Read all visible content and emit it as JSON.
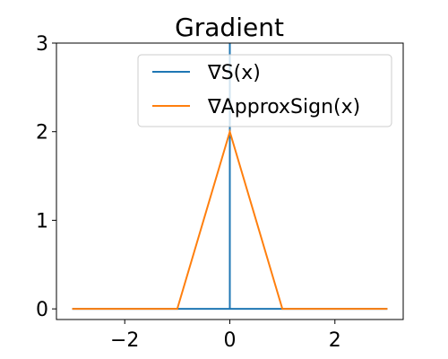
{
  "chart_data": {
    "type": "line",
    "title": "Gradient",
    "xlabel": "",
    "ylabel": "",
    "xlim": [
      -3.3,
      3.3
    ],
    "ylim": [
      -0.12,
      3.0
    ],
    "x_ticks": [
      -2,
      0,
      2
    ],
    "x_tick_labels": [
      "−2",
      "0",
      "2"
    ],
    "y_ticks": [
      0,
      1,
      2,
      3
    ],
    "y_tick_labels": [
      "0",
      "1",
      "2",
      "3"
    ],
    "grid": false,
    "legend_position": "top-right",
    "series": [
      {
        "name": "∇S(x)",
        "color": "#1f77b4",
        "x": [
          -3,
          0,
          0,
          0,
          3
        ],
        "y": [
          0,
          0,
          3,
          0,
          0
        ]
      },
      {
        "name": "∇ApproxSign(x)",
        "color": "#ff7f0e",
        "x": [
          -3,
          -1,
          0,
          1,
          3
        ],
        "y": [
          0,
          0,
          2,
          0,
          0
        ]
      }
    ]
  }
}
